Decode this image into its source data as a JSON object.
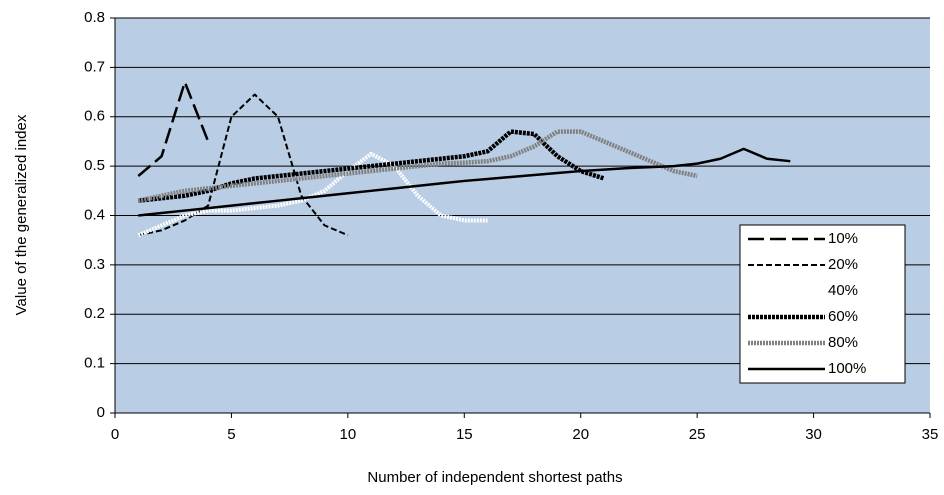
{
  "chart_data": {
    "type": "line",
    "xlabel": "Number  of independent shortest paths",
    "ylabel": "Value of the generalized index",
    "x": [
      1,
      2,
      3,
      4,
      5,
      6,
      7,
      8,
      9,
      10,
      11,
      12,
      13,
      14,
      15,
      16,
      17,
      18,
      19,
      20,
      21,
      22,
      23,
      24,
      25,
      26,
      27,
      28,
      29
    ],
    "xlim": [
      0,
      35
    ],
    "xticks": [
      0,
      5,
      10,
      15,
      20,
      25,
      30,
      35
    ],
    "ylim": [
      0,
      0.8
    ],
    "yticks": [
      0,
      0.1,
      0.2,
      0.3,
      0.4,
      0.5,
      0.6,
      0.7,
      0.8
    ],
    "grid": true,
    "legend": "lower right",
    "background": "#b9cde5",
    "series": [
      {
        "name": "10%",
        "color": "#000000",
        "dash": "16 6",
        "width": 2.5,
        "values": [
          0.48,
          0.52,
          0.67,
          0.55,
          null,
          null,
          null,
          null,
          null,
          null,
          null,
          null,
          null,
          null,
          null,
          null,
          null,
          null,
          null,
          null,
          null,
          null,
          null,
          null,
          null,
          null,
          null,
          null,
          null
        ]
      },
      {
        "name": "20%",
        "color": "#000000",
        "dash": "6 3",
        "width": 2,
        "values": [
          0.36,
          0.37,
          0.39,
          0.42,
          0.6,
          0.645,
          0.6,
          0.44,
          0.38,
          0.36,
          null,
          null,
          null,
          null,
          null,
          null,
          null,
          null,
          null,
          null,
          null,
          null,
          null,
          null,
          null,
          null,
          null,
          null,
          null
        ]
      },
      {
        "name": "40%",
        "color": "#ffffff",
        "dash": "2 1",
        "width": 4,
        "values": [
          0.36,
          0.38,
          0.4,
          0.41,
          0.41,
          0.415,
          0.42,
          0.43,
          0.45,
          0.49,
          0.525,
          0.5,
          0.44,
          0.4,
          0.39,
          0.39,
          null,
          null,
          null,
          null,
          null,
          null,
          null,
          null,
          null,
          null,
          null,
          null,
          null
        ]
      },
      {
        "name": "60%",
        "color": "#000000",
        "dash": "3 1",
        "width": 4.5,
        "values": [
          0.43,
          0.435,
          0.44,
          0.45,
          0.465,
          0.475,
          0.48,
          0.485,
          0.49,
          0.495,
          0.5,
          0.505,
          0.51,
          0.515,
          0.52,
          0.53,
          0.57,
          0.565,
          0.52,
          0.49,
          0.475,
          null,
          null,
          null,
          null,
          null,
          null,
          null,
          null
        ]
      },
      {
        "name": "80%",
        "color": "#808080",
        "dash": "2 1",
        "width": 4.5,
        "values": [
          0.43,
          0.44,
          0.45,
          0.455,
          0.46,
          0.465,
          0.47,
          0.475,
          0.48,
          0.485,
          0.49,
          0.495,
          0.5,
          0.505,
          0.507,
          0.51,
          0.52,
          0.54,
          0.57,
          0.57,
          0.55,
          0.53,
          0.51,
          0.49,
          0.48,
          null,
          null,
          null,
          null
        ]
      },
      {
        "name": "100%",
        "color": "#000000",
        "dash": "none",
        "width": 2.5,
        "values": [
          0.4,
          0.405,
          0.41,
          0.415,
          0.42,
          0.425,
          0.43,
          0.435,
          0.44,
          0.445,
          0.45,
          0.455,
          0.46,
          0.465,
          0.47,
          0.474,
          0.478,
          0.482,
          0.486,
          0.49,
          0.493,
          0.496,
          0.498,
          0.5,
          0.505,
          0.515,
          0.535,
          0.515,
          0.51
        ]
      }
    ]
  }
}
